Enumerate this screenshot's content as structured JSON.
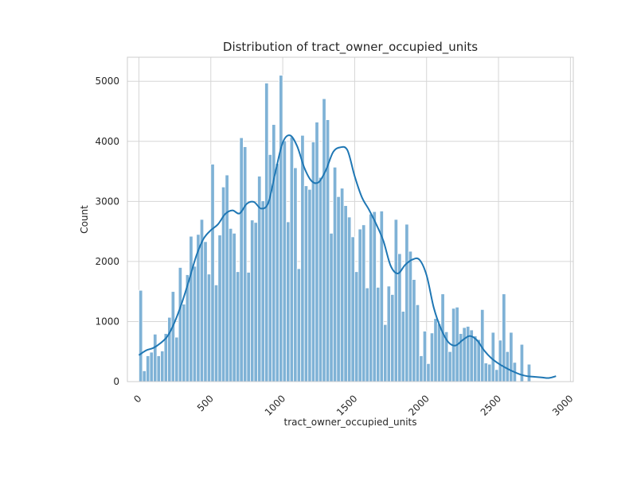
{
  "chart_data": {
    "type": "bar",
    "title": "Distribution of tract_owner_occupied_units",
    "xlabel": "tract_owner_occupied_units",
    "ylabel": "Count",
    "xlim": [
      -80,
      3020
    ],
    "ylim": [
      0,
      5400
    ],
    "grid": true,
    "bar_color": "#7fb2d6",
    "kde_color": "#1f77b4",
    "bin_width": 25,
    "x_ticks": [
      "0",
      "500",
      "1000",
      "1500",
      "2000",
      "2500",
      "3000"
    ],
    "x_tick_values": [
      0,
      500,
      1000,
      1500,
      2000,
      2500,
      3000
    ],
    "y_ticks": [
      "0",
      "1000",
      "2000",
      "3000",
      "4000",
      "5000"
    ],
    "y_tick_values": [
      0,
      1000,
      2000,
      3000,
      4000,
      5000
    ],
    "bin_starts": [
      0,
      25,
      50,
      75,
      100,
      125,
      150,
      175,
      200,
      225,
      250,
      275,
      300,
      325,
      350,
      375,
      400,
      425,
      450,
      475,
      500,
      525,
      550,
      575,
      600,
      625,
      650,
      675,
      700,
      725,
      750,
      775,
      800,
      825,
      850,
      875,
      900,
      925,
      950,
      975,
      1000,
      1025,
      1050,
      1075,
      1100,
      1125,
      1150,
      1175,
      1200,
      1225,
      1250,
      1275,
      1300,
      1325,
      1350,
      1375,
      1400,
      1425,
      1450,
      1475,
      1500,
      1525,
      1550,
      1575,
      1600,
      1625,
      1650,
      1675,
      1700,
      1725,
      1750,
      1775,
      1800,
      1825,
      1850,
      1875,
      1900,
      1925,
      1950,
      1975,
      2000,
      2025,
      2050,
      2075,
      2100,
      2125,
      2150,
      2175,
      2200,
      2225,
      2250,
      2275,
      2300,
      2325,
      2350,
      2375,
      2400,
      2425,
      2450,
      2475,
      2500,
      2525,
      2550,
      2575,
      2600,
      2625,
      2650,
      2675,
      2700,
      2725,
      2750,
      2775,
      2800,
      2825,
      2850,
      2875
    ],
    "values": [
      1520,
      180,
      430,
      490,
      790,
      430,
      510,
      800,
      1070,
      1500,
      740,
      1900,
      1290,
      1780,
      2420,
      1920,
      2450,
      2700,
      2330,
      1790,
      3620,
      1610,
      2440,
      3240,
      3440,
      2550,
      2470,
      1830,
      4060,
      3910,
      1820,
      2690,
      2650,
      3420,
      3010,
      4970,
      3780,
      4280,
      3630,
      5100,
      4010,
      2660,
      4070,
      3560,
      1880,
      4100,
      3260,
      3200,
      3990,
      4320,
      3400,
      4710,
      4360,
      2470,
      3570,
      3080,
      3220,
      2930,
      2740,
      2410,
      1830,
      2540,
      2610,
      1560,
      2790,
      2830,
      1570,
      2840,
      950,
      1590,
      1450,
      2700,
      2130,
      1170,
      2620,
      2170,
      1700,
      1280,
      430,
      840,
      300,
      810,
      1050,
      960,
      1460,
      830,
      500,
      1220,
      1240,
      800,
      900,
      920,
      860,
      760,
      700,
      1200,
      310,
      290,
      820,
      200,
      690,
      1460,
      500,
      820,
      320,
      0,
      620,
      0,
      290,
      0,
      0,
      0,
      0,
      0,
      0,
      0,
      0
    ],
    "kde_x": [
      0,
      50,
      100,
      150,
      200,
      250,
      300,
      350,
      400,
      450,
      500,
      550,
      600,
      650,
      700,
      750,
      800,
      850,
      900,
      950,
      1000,
      1050,
      1100,
      1150,
      1200,
      1250,
      1300,
      1350,
      1400,
      1450,
      1500,
      1550,
      1600,
      1650,
      1700,
      1750,
      1800,
      1850,
      1900,
      1950,
      2000,
      2050,
      2100,
      2150,
      2200,
      2250,
      2300,
      2350,
      2400,
      2450,
      2500,
      2550,
      2600,
      2650,
      2700,
      2750,
      2800,
      2850,
      2900
    ],
    "kde_y": [
      440,
      520,
      560,
      640,
      760,
      1000,
      1320,
      1700,
      2100,
      2380,
      2520,
      2620,
      2790,
      2850,
      2800,
      2960,
      2990,
      2880,
      2980,
      3500,
      3980,
      4100,
      3920,
      3560,
      3340,
      3320,
      3520,
      3820,
      3900,
      3850,
      3420,
      3070,
      2860,
      2620,
      2340,
      1930,
      1800,
      1940,
      2030,
      2030,
      1770,
      1230,
      880,
      660,
      600,
      690,
      760,
      690,
      520,
      390,
      300,
      230,
      170,
      120,
      90,
      80,
      70,
      60,
      90
    ]
  }
}
